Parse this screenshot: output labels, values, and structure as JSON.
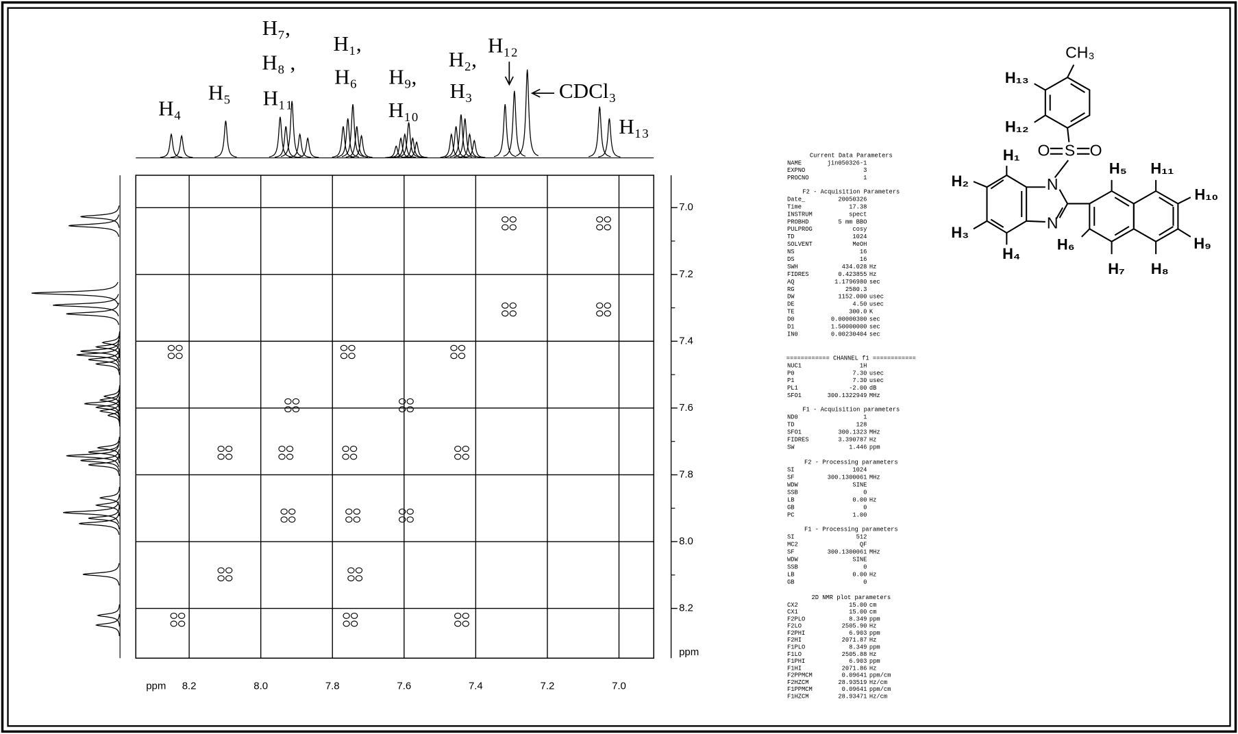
{
  "chart_data": {
    "type": "cosy",
    "x_label": "ppm",
    "y_label": "ppm",
    "xlim": [
      8.349,
      6.903
    ],
    "xticks": [
      8.2,
      {
        "value": 8,
        "label": "8.0"
      },
      7.8,
      7.6,
      7.4,
      7.2,
      {
        "value": 7,
        "label": "7.0"
      }
    ],
    "ylim": [
      6.903,
      8.349
    ],
    "yticks": [
      {
        "value": 7,
        "label": "7.0"
      },
      7.2,
      7.4,
      7.6,
      7.8,
      {
        "value": 8,
        "label": "8.0"
      },
      8.2
    ],
    "grid": true,
    "peak_labels": [
      "H₄",
      "H₅",
      "H₇,",
      "H₈ ,",
      "H₁₁",
      "H₁,",
      "H₆",
      "H₉,",
      "H₁₀",
      "H₂,",
      "H₃",
      "H₁₂",
      "CDCl₃",
      "H₁₃"
    ],
    "signals": [
      {
        "ppm": 8.25,
        "intensity": 30
      },
      {
        "ppm": 8.221,
        "intensity": 28
      },
      {
        "ppm": 8.098,
        "intensity": 47
      },
      {
        "ppm": 7.946,
        "intensity": 52
      },
      {
        "ppm": 7.93,
        "intensity": 40
      },
      {
        "ppm": 7.913,
        "intensity": 72
      },
      {
        "ppm": 7.891,
        "intensity": 30
      },
      {
        "ppm": 7.869,
        "intensity": 25
      },
      {
        "ppm": 7.77,
        "intensity": 40
      },
      {
        "ppm": 7.757,
        "intensity": 50
      },
      {
        "ppm": 7.743,
        "intensity": 68
      },
      {
        "ppm": 7.732,
        "intensity": 40
      },
      {
        "ppm": 7.719,
        "intensity": 28
      },
      {
        "ppm": 7.622,
        "intensity": 15
      },
      {
        "ppm": 7.609,
        "intensity": 25
      },
      {
        "ppm": 7.598,
        "intensity": 30
      },
      {
        "ppm": 7.587,
        "intensity": 45
      },
      {
        "ppm": 7.576,
        "intensity": 25
      },
      {
        "ppm": 7.565,
        "intensity": 20
      },
      {
        "ppm": 7.468,
        "intensity": 30
      },
      {
        "ppm": 7.455,
        "intensity": 40
      },
      {
        "ppm": 7.441,
        "intensity": 55
      },
      {
        "ppm": 7.43,
        "intensity": 50
      },
      {
        "ppm": 7.417,
        "intensity": 30
      },
      {
        "ppm": 7.404,
        "intensity": 22
      },
      {
        "ppm": 7.318,
        "intensity": 68
      },
      {
        "ppm": 7.292,
        "intensity": 85
      },
      {
        "ppm": 7.256,
        "intensity": 112
      },
      {
        "ppm": 7.054,
        "intensity": 65
      },
      {
        "ppm": 7.027,
        "intensity": 50
      }
    ],
    "cross_peaks": [
      {
        "f2": 7.307,
        "f1": 7.047
      },
      {
        "f2": 7.043,
        "f1": 7.047
      },
      {
        "f2": 7.307,
        "f1": 7.305
      },
      {
        "f2": 7.043,
        "f1": 7.305
      },
      {
        "f2": 8.239,
        "f1": 7.432
      },
      {
        "f2": 7.757,
        "f1": 7.432
      },
      {
        "f2": 7.45,
        "f1": 7.432
      },
      {
        "f2": 7.913,
        "f1": 7.592
      },
      {
        "f2": 7.594,
        "f1": 7.592
      },
      {
        "f2": 8.1,
        "f1": 7.734
      },
      {
        "f2": 7.93,
        "f1": 7.734
      },
      {
        "f2": 7.752,
        "f1": 7.734
      },
      {
        "f2": 7.439,
        "f1": 7.734
      },
      {
        "f2": 7.924,
        "f1": 7.922
      },
      {
        "f2": 7.743,
        "f1": 7.922
      },
      {
        "f2": 7.594,
        "f1": 7.922
      },
      {
        "f2": 8.1,
        "f1": 8.098
      },
      {
        "f2": 7.737,
        "f1": 8.098
      },
      {
        "f2": 8.232,
        "f1": 8.234
      },
      {
        "f2": 7.75,
        "f1": 8.234
      },
      {
        "f2": 7.439,
        "f1": 8.234
      }
    ]
  },
  "parameters": [
    {
      "title": "Current Data Parameters",
      "rows": [
        [
          "NAME",
          "jin050326-1"
        ],
        [
          "EXPNO",
          "3"
        ],
        [
          "PROCNO",
          "1"
        ]
      ]
    },
    {
      "title": "F2 - Acquisition Parameters",
      "rows": [
        [
          "Date_",
          "20050326"
        ],
        [
          "Time",
          "17.38"
        ],
        [
          "INSTRUM",
          "spect"
        ],
        [
          "PROBHD",
          "5 mm BBO"
        ],
        [
          "PULPROG",
          "cosy"
        ],
        [
          "TD",
          "1024"
        ],
        [
          "SOLVENT",
          "MeOH"
        ],
        [
          "NS",
          "16"
        ],
        [
          "DS",
          "16"
        ],
        [
          "SWH",
          "434.028",
          "Hz"
        ],
        [
          "FIDRES",
          "0.423855",
          "Hz"
        ],
        [
          "AQ",
          "1.1796980",
          "sec"
        ],
        [
          "RG",
          "2580.3"
        ],
        [
          "DW",
          "1152.000",
          "usec"
        ],
        [
          "DE",
          "4.50",
          "usec"
        ],
        [
          "TE",
          "300.0",
          "K"
        ],
        [
          "D0",
          "0.00000300",
          "sec"
        ],
        [
          "D1",
          "1.50000000",
          "sec"
        ],
        [
          "IN0",
          "0.00230404",
          "sec"
        ]
      ]
    },
    {
      "title": "============ CHANNEL f1 ============",
      "rows": [
        [
          "NUC1",
          "1H"
        ],
        [
          "P0",
          "7.30",
          "usec"
        ],
        [
          "P1",
          "7.30",
          "usec"
        ],
        [
          "PL1",
          "-2.00",
          "dB"
        ],
        [
          "SFO1",
          "300.1322949",
          "MHz"
        ]
      ]
    },
    {
      "title": "F1 - Acquisition parameters",
      "rows": [
        [
          "ND0",
          "1"
        ],
        [
          "TD",
          "128"
        ],
        [
          "SFO1",
          "300.1323",
          "MHz"
        ],
        [
          "FIDRES",
          "3.390787",
          "Hz"
        ],
        [
          "SW",
          "1.446",
          "ppm"
        ]
      ]
    },
    {
      "title": "F2 - Processing parameters",
      "rows": [
        [
          "SI",
          "1024"
        ],
        [
          "SF",
          "300.1300061",
          "MHz"
        ],
        [
          "WDW",
          "SINE"
        ],
        [
          "SSB",
          "0"
        ],
        [
          "LB",
          "0.00",
          "Hz"
        ],
        [
          "GB",
          "0"
        ],
        [
          "PC",
          "1.00"
        ]
      ]
    },
    {
      "title": "F1 - Processing parameters",
      "rows": [
        [
          "SI",
          "512"
        ],
        [
          "MC2",
          "QF"
        ],
        [
          "SF",
          "300.1300061",
          "MHz"
        ],
        [
          "WDW",
          "SINE"
        ],
        [
          "SSB",
          "0"
        ],
        [
          "LB",
          "0.00",
          "Hz"
        ],
        [
          "GB",
          "0"
        ]
      ]
    },
    {
      "title": "2D NMR plot parameters",
      "rows": [
        [
          "CX2",
          "15.00",
          "cm"
        ],
        [
          "CX1",
          "15.00",
          "cm"
        ],
        [
          "F2PLO",
          "8.349",
          "ppm"
        ],
        [
          "F2LO",
          "2505.90",
          "Hz"
        ],
        [
          "F2PHI",
          "6.903",
          "ppm"
        ],
        [
          "F2HI",
          "2071.87",
          "Hz"
        ],
        [
          "F1PLO",
          "8.349",
          "ppm"
        ],
        [
          "F1LO",
          "2505.88",
          "Hz"
        ],
        [
          "F1PHI",
          "6.903",
          "ppm"
        ],
        [
          "F1HI",
          "2071.86",
          "Hz"
        ],
        [
          "F2PPMCM",
          "0.09641",
          "ppm/cm"
        ],
        [
          "F2HZCM",
          "28.93519",
          "Hz/cm"
        ],
        [
          "F1PPMCM",
          "0.09641",
          "ppm/cm"
        ],
        [
          "F1HZCM",
          "28.93471",
          "Hz/cm"
        ]
      ]
    }
  ],
  "structure": {
    "labels": [
      "CH₃",
      "H₁₃",
      "H₁₂",
      "O",
      "S",
      "O",
      "N",
      "N",
      "H₁",
      "H₂",
      "H₃",
      "H₄",
      "H₅",
      "H₁₁",
      "H₁₀",
      "H₉",
      "H₈",
      "H₇",
      "H₆"
    ]
  }
}
